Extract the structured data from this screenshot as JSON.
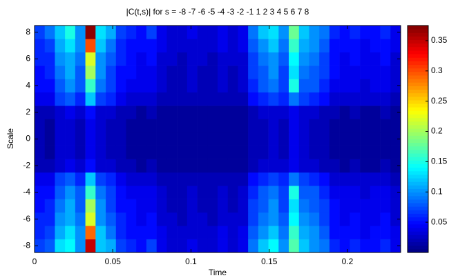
{
  "chart_data": {
    "type": "heatmap",
    "title": "|C(t,s)| for s =  -8 -7 -6 -5 -4 -3 -2 -1  1  2  3  4  5  6  7  8",
    "x_label": "Time",
    "y_label": "Scale",
    "colormap": "jet",
    "xlim": [
      0,
      0.234
    ],
    "xticks": [
      0,
      0.05,
      0.1,
      0.15,
      0.2
    ],
    "ylim": [
      -8.5,
      8.5
    ],
    "yticks": [
      -8,
      -6,
      -4,
      -2,
      0,
      2,
      4,
      6,
      8
    ],
    "clim": [
      0,
      0.375
    ],
    "cticks": [
      0.05,
      0.1,
      0.15,
      0.2,
      0.25,
      0.3,
      0.35
    ],
    "x": [
      0,
      0.0065,
      0.013,
      0.0195,
      0.026,
      0.0325,
      0.039,
      0.0455,
      0.052,
      0.0585,
      0.065,
      0.0715,
      0.078,
      0.0845,
      0.091,
      0.0975,
      0.104,
      0.1105,
      0.117,
      0.1235,
      0.13,
      0.1365,
      0.143,
      0.1495,
      0.156,
      0.1625,
      0.169,
      0.1755,
      0.182,
      0.1885,
      0.195,
      0.2015,
      0.208,
      0.2145,
      0.221,
      0.2275
    ],
    "y": [
      -8,
      -7,
      -6,
      -5,
      -4,
      -3,
      -2,
      -1,
      0,
      1,
      2,
      3,
      4,
      5,
      6,
      7,
      8
    ],
    "z": [
      [
        0.07,
        0.08,
        0.13,
        0.14,
        0.1,
        0.35,
        0.12,
        0.11,
        0.07,
        0.06,
        0.05,
        0.07,
        0.04,
        0.03,
        0.03,
        0.04,
        0.03,
        0.03,
        0.04,
        0.03,
        0.04,
        0.09,
        0.12,
        0.14,
        0.1,
        0.17,
        0.12,
        0.1,
        0.09,
        0.06,
        0.05,
        0.06,
        0.05,
        0.05,
        0.06,
        0.04
      ],
      [
        0.06,
        0.07,
        0.11,
        0.13,
        0.1,
        0.29,
        0.12,
        0.09,
        0.06,
        0.05,
        0.05,
        0.05,
        0.04,
        0.03,
        0.03,
        0.03,
        0.03,
        0.03,
        0.04,
        0.03,
        0.04,
        0.08,
        0.1,
        0.12,
        0.09,
        0.16,
        0.11,
        0.1,
        0.08,
        0.05,
        0.05,
        0.05,
        0.04,
        0.05,
        0.05,
        0.04
      ],
      [
        0.06,
        0.06,
        0.1,
        0.11,
        0.09,
        0.22,
        0.1,
        0.08,
        0.06,
        0.05,
        0.04,
        0.05,
        0.03,
        0.03,
        0.02,
        0.03,
        0.03,
        0.02,
        0.03,
        0.03,
        0.03,
        0.07,
        0.09,
        0.1,
        0.08,
        0.14,
        0.1,
        0.09,
        0.07,
        0.05,
        0.04,
        0.05,
        0.04,
        0.04,
        0.05,
        0.03
      ],
      [
        0.05,
        0.06,
        0.09,
        0.11,
        0.08,
        0.2,
        0.1,
        0.07,
        0.05,
        0.05,
        0.04,
        0.04,
        0.03,
        0.02,
        0.02,
        0.03,
        0.02,
        0.02,
        0.03,
        0.02,
        0.03,
        0.07,
        0.08,
        0.1,
        0.07,
        0.13,
        0.09,
        0.08,
        0.07,
        0.05,
        0.04,
        0.04,
        0.04,
        0.04,
        0.04,
        0.03
      ],
      [
        0.05,
        0.05,
        0.08,
        0.1,
        0.08,
        0.16,
        0.09,
        0.07,
        0.05,
        0.04,
        0.04,
        0.04,
        0.03,
        0.02,
        0.02,
        0.03,
        0.02,
        0.02,
        0.03,
        0.02,
        0.03,
        0.06,
        0.08,
        0.09,
        0.07,
        0.15,
        0.08,
        0.08,
        0.06,
        0.04,
        0.04,
        0.04,
        0.03,
        0.04,
        0.04,
        0.03
      ],
      [
        0.04,
        0.04,
        0.07,
        0.08,
        0.06,
        0.12,
        0.07,
        0.06,
        0.04,
        0.03,
        0.03,
        0.03,
        0.02,
        0.02,
        0.02,
        0.02,
        0.02,
        0.02,
        0.02,
        0.02,
        0.02,
        0.05,
        0.06,
        0.07,
        0.06,
        0.09,
        0.07,
        0.06,
        0.05,
        0.03,
        0.03,
        0.03,
        0.03,
        0.03,
        0.03,
        0.02
      ],
      [
        0.02,
        0.02,
        0.03,
        0.04,
        0.03,
        0.05,
        0.03,
        0.03,
        0.02,
        0.02,
        0.01,
        0.02,
        0.01,
        0.01,
        0.01,
        0.01,
        0.01,
        0.01,
        0.01,
        0.01,
        0.01,
        0.02,
        0.03,
        0.03,
        0.03,
        0.04,
        0.03,
        0.03,
        0.02,
        0.02,
        0.01,
        0.02,
        0.01,
        0.01,
        0.02,
        0.01
      ],
      [
        0.02,
        0.01,
        0.03,
        0.03,
        0.02,
        0.04,
        0.03,
        0.02,
        0.02,
        0.01,
        0.01,
        0.01,
        0.01,
        0.01,
        0.01,
        0.01,
        0.01,
        0.01,
        0.01,
        0.01,
        0.01,
        0.02,
        0.02,
        0.03,
        0.02,
        0.04,
        0.03,
        0.02,
        0.02,
        0.01,
        0.01,
        0.01,
        0.01,
        0.01,
        0.01,
        0.01
      ],
      [
        0.02,
        0.01,
        0.03,
        0.03,
        0.02,
        0.04,
        0.03,
        0.02,
        0.02,
        0.01,
        0.01,
        0.01,
        0.01,
        0.01,
        0.01,
        0.01,
        0.01,
        0.01,
        0.01,
        0.01,
        0.01,
        0.02,
        0.02,
        0.03,
        0.02,
        0.04,
        0.03,
        0.02,
        0.02,
        0.01,
        0.01,
        0.01,
        0.01,
        0.01,
        0.01,
        0.01
      ],
      [
        0.02,
        0.01,
        0.03,
        0.03,
        0.02,
        0.04,
        0.03,
        0.02,
        0.02,
        0.01,
        0.01,
        0.01,
        0.01,
        0.01,
        0.01,
        0.01,
        0.01,
        0.01,
        0.01,
        0.01,
        0.01,
        0.02,
        0.02,
        0.03,
        0.02,
        0.04,
        0.03,
        0.02,
        0.02,
        0.01,
        0.01,
        0.01,
        0.01,
        0.01,
        0.01,
        0.01
      ],
      [
        0.02,
        0.02,
        0.03,
        0.04,
        0.03,
        0.05,
        0.03,
        0.03,
        0.02,
        0.02,
        0.01,
        0.02,
        0.01,
        0.01,
        0.01,
        0.01,
        0.01,
        0.01,
        0.01,
        0.01,
        0.01,
        0.02,
        0.03,
        0.03,
        0.03,
        0.04,
        0.03,
        0.03,
        0.02,
        0.02,
        0.01,
        0.02,
        0.01,
        0.01,
        0.02,
        0.01
      ],
      [
        0.04,
        0.04,
        0.07,
        0.08,
        0.06,
        0.12,
        0.07,
        0.06,
        0.04,
        0.03,
        0.03,
        0.03,
        0.02,
        0.02,
        0.02,
        0.02,
        0.02,
        0.02,
        0.02,
        0.02,
        0.02,
        0.05,
        0.06,
        0.07,
        0.06,
        0.09,
        0.07,
        0.06,
        0.05,
        0.03,
        0.03,
        0.03,
        0.03,
        0.03,
        0.03,
        0.02
      ],
      [
        0.05,
        0.05,
        0.08,
        0.1,
        0.08,
        0.16,
        0.09,
        0.07,
        0.05,
        0.04,
        0.04,
        0.04,
        0.03,
        0.02,
        0.02,
        0.03,
        0.02,
        0.02,
        0.03,
        0.02,
        0.03,
        0.06,
        0.08,
        0.09,
        0.07,
        0.15,
        0.08,
        0.08,
        0.06,
        0.04,
        0.04,
        0.04,
        0.03,
        0.04,
        0.04,
        0.03
      ],
      [
        0.05,
        0.06,
        0.09,
        0.11,
        0.08,
        0.2,
        0.1,
        0.07,
        0.05,
        0.05,
        0.04,
        0.04,
        0.03,
        0.02,
        0.02,
        0.03,
        0.02,
        0.02,
        0.03,
        0.02,
        0.03,
        0.07,
        0.08,
        0.1,
        0.07,
        0.13,
        0.09,
        0.08,
        0.07,
        0.05,
        0.04,
        0.04,
        0.04,
        0.04,
        0.04,
        0.03
      ],
      [
        0.06,
        0.06,
        0.1,
        0.11,
        0.09,
        0.22,
        0.1,
        0.08,
        0.06,
        0.05,
        0.04,
        0.05,
        0.03,
        0.03,
        0.02,
        0.03,
        0.03,
        0.02,
        0.03,
        0.03,
        0.03,
        0.07,
        0.09,
        0.1,
        0.08,
        0.14,
        0.1,
        0.09,
        0.07,
        0.05,
        0.04,
        0.05,
        0.04,
        0.04,
        0.05,
        0.03
      ],
      [
        0.06,
        0.07,
        0.11,
        0.13,
        0.1,
        0.3,
        0.12,
        0.09,
        0.06,
        0.05,
        0.05,
        0.05,
        0.04,
        0.03,
        0.03,
        0.03,
        0.03,
        0.03,
        0.04,
        0.03,
        0.04,
        0.08,
        0.1,
        0.12,
        0.09,
        0.16,
        0.11,
        0.1,
        0.08,
        0.05,
        0.05,
        0.05,
        0.04,
        0.05,
        0.05,
        0.04
      ],
      [
        0.07,
        0.09,
        0.12,
        0.15,
        0.1,
        0.37,
        0.13,
        0.11,
        0.07,
        0.06,
        0.05,
        0.07,
        0.04,
        0.03,
        0.03,
        0.04,
        0.03,
        0.03,
        0.04,
        0.03,
        0.04,
        0.09,
        0.12,
        0.13,
        0.1,
        0.18,
        0.12,
        0.1,
        0.09,
        0.06,
        0.05,
        0.06,
        0.05,
        0.05,
        0.06,
        0.04
      ]
    ]
  }
}
